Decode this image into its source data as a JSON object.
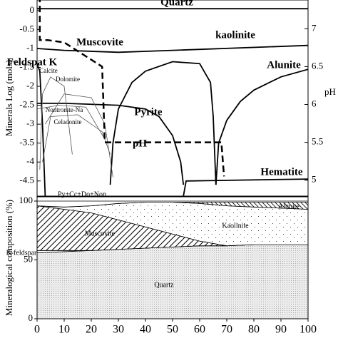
{
  "chart_data": [
    {
      "type": "line",
      "ylabel": "Minerals Log (mols)",
      "y2label": "pH",
      "xlim": [
        0,
        100
      ],
      "ylim": [
        -4.9,
        0.28
      ],
      "yticks": [
        0,
        -0.5,
        -1,
        -1.5,
        -2,
        -2.5,
        -3,
        -3.5,
        -4,
        -4.5
      ],
      "y2lim": [
        4.79,
        7.38
      ],
      "y2ticks": [
        5,
        5.5,
        6,
        6.5,
        7
      ],
      "series": [
        {
          "name": "Quartz",
          "color": "#000",
          "style": "big",
          "x": [
            0,
            100
          ],
          "values": [
            0.05,
            0.05
          ]
        },
        {
          "name": "Muscovite",
          "color": "#000",
          "style": "big",
          "x": [
            0,
            10,
            30,
            50,
            100
          ],
          "values": [
            -1.0,
            -1.05,
            -1.1,
            -1.05,
            -0.92
          ]
        },
        {
          "name": "kaolinite",
          "color": "#000",
          "style": "big",
          "x": [
            27,
            28,
            30,
            35,
            40,
            50,
            60,
            64,
            65,
            66
          ],
          "values": [
            -4.6,
            -3.5,
            -2.6,
            -1.9,
            -1.6,
            -1.35,
            -1.4,
            -1.9,
            -2.8,
            -4.6
          ]
        },
        {
          "name": "Alunite",
          "color": "#000",
          "style": "big",
          "x": [
            66,
            67,
            70,
            75,
            80,
            90,
            100
          ],
          "values": [
            -4.6,
            -3.5,
            -2.9,
            -2.4,
            -2.1,
            -1.75,
            -1.55
          ]
        },
        {
          "name": "Pyrite",
          "color": "#000",
          "style": "big",
          "x": [
            0,
            10,
            30,
            40,
            45,
            50,
            53,
            54
          ],
          "values": [
            -2.45,
            -2.45,
            -2.5,
            -2.6,
            -2.8,
            -3.3,
            -4.0,
            -4.6
          ]
        },
        {
          "name": "Hematite",
          "color": "#000",
          "style": "big",
          "x": [
            54,
            55,
            100
          ],
          "values": [
            -4.9,
            -4.5,
            -4.45
          ]
        },
        {
          "name": "Feldspat K",
          "color": "#000",
          "style": "big",
          "x": [
            0,
            1,
            2,
            3
          ],
          "values": [
            -1.4,
            -1.6,
            -3.0,
            -4.9
          ]
        },
        {
          "name": "Calcite",
          "color": "#555",
          "style": "small",
          "x": [
            1,
            2,
            5,
            10,
            13
          ],
          "values": [
            -4.2,
            -2.2,
            -1.75,
            -2.0,
            -3.8
          ]
        },
        {
          "name": "Dolomite",
          "color": "#555",
          "style": "small",
          "x": [
            3,
            10,
            20,
            25,
            28
          ],
          "values": [
            -3.0,
            -2.2,
            -2.3,
            -3.0,
            -4.4
          ]
        },
        {
          "name": "Nontronite-Na",
          "color": "#555",
          "style": "small",
          "x": [
            0,
            8,
            18,
            25
          ],
          "values": [
            -2.6,
            -2.5,
            -2.55,
            -3.4
          ]
        },
        {
          "name": "Celadonite",
          "color": "#555",
          "style": "small",
          "x": [
            2,
            5,
            15,
            24,
            27
          ],
          "values": [
            -4.0,
            -2.8,
            -2.75,
            -3.2,
            -3.8
          ]
        },
        {
          "name": "pH",
          "color": "#000",
          "style": "big",
          "axis": "y2",
          "dash": true,
          "x": [
            0,
            1,
            1,
            4,
            10,
            24,
            24,
            25,
            25,
            68,
            69
          ],
          "values": [
            7.4,
            7.4,
            6.85,
            6.85,
            6.82,
            6.5,
            6.5,
            5.5,
            5.5,
            5.5,
            5.05
          ]
        }
      ]
    },
    {
      "type": "stacked_area",
      "ylabel": "Mineralogical composition (%)",
      "x": [
        0,
        10,
        20,
        30,
        40,
        50,
        60,
        70,
        80,
        90,
        100
      ],
      "xlim": [
        0,
        100
      ],
      "xticks": [
        0,
        10,
        20,
        30,
        40,
        50,
        60,
        70,
        80,
        90,
        100
      ],
      "ylim": [
        0,
        100
      ],
      "yticks": [
        0,
        50,
        100
      ],
      "series": [
        {
          "name": "Quartz",
          "pattern": "stipple",
          "values": [
            56,
            57,
            58,
            59,
            60,
            61,
            62,
            62,
            63,
            63,
            63
          ]
        },
        {
          "name": "K-feldspar",
          "pattern": "none",
          "values": [
            2,
            1,
            0,
            0,
            0,
            0,
            0,
            0,
            0,
            0,
            0
          ]
        },
        {
          "name": "Muscovite",
          "pattern": "hatch",
          "values": [
            38,
            35,
            32,
            25,
            18,
            11,
            4,
            0,
            0,
            0,
            0
          ]
        },
        {
          "name": "Kaolinite",
          "pattern": "dots",
          "values": [
            0,
            2,
            6,
            14,
            21,
            27,
            32,
            34,
            32,
            31,
            30
          ]
        },
        {
          "name": "Alunite",
          "pattern": "backhatch",
          "values": [
            0,
            0,
            0,
            0,
            0,
            0,
            1,
            3,
            4,
            5,
            6
          ]
        },
        {
          "name": "Py+Cc+Do+Non",
          "pattern": "none",
          "values": [
            4,
            5,
            4,
            2,
            1,
            1,
            1,
            1,
            1,
            1,
            1
          ]
        }
      ]
    }
  ]
}
